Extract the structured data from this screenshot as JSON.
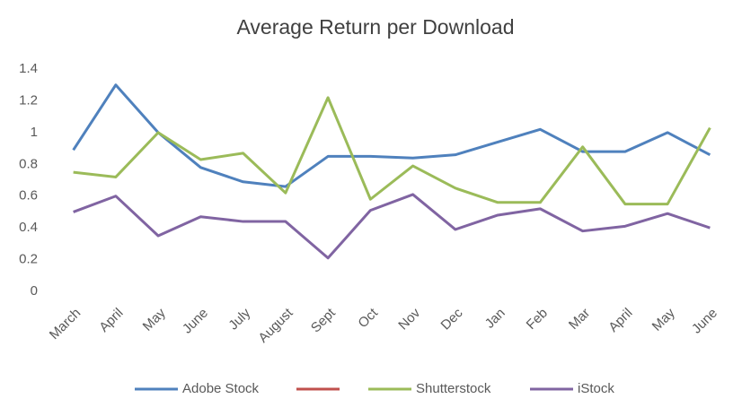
{
  "chart_data": {
    "type": "line",
    "title": "Average Return per Download",
    "categories": [
      "March",
      "April",
      "May",
      "June",
      "July",
      "August",
      "Sept",
      "Oct",
      "Nov",
      "Dec",
      "Jan",
      "Feb",
      "Mar",
      "April",
      "May",
      "June"
    ],
    "series": [
      {
        "name": "Adobe Stock",
        "color": "#4f81bd",
        "values": [
          0.89,
          1.3,
          1.0,
          0.78,
          0.69,
          0.66,
          0.85,
          0.85,
          0.84,
          0.86,
          0.94,
          1.02,
          0.88,
          0.88,
          1.0,
          0.86
        ]
      },
      {
        "color": "#c0504d",
        "values": [
          null,
          null,
          null,
          null,
          null,
          null,
          null,
          null,
          null,
          null,
          null,
          null,
          null,
          null,
          null,
          null
        ]
      },
      {
        "name": "Shutterstock",
        "color": "#9bbb59",
        "values": [
          0.75,
          0.72,
          1.0,
          0.83,
          0.87,
          0.62,
          1.22,
          0.58,
          0.79,
          0.65,
          0.56,
          0.56,
          0.91,
          0.55,
          0.55,
          1.03
        ]
      },
      {
        "name": "iStock",
        "color": "#8064a2",
        "values": [
          0.5,
          0.6,
          0.35,
          0.47,
          0.44,
          0.44,
          0.21,
          0.51,
          0.61,
          0.39,
          0.48,
          0.52,
          0.38,
          0.41,
          0.49,
          0.4
        ]
      }
    ],
    "ylim": [
      0,
      1.4
    ],
    "yticks": [
      0,
      0.2,
      0.4,
      0.6,
      0.8,
      1,
      1.2,
      1.4
    ],
    "grid": false,
    "legend": "bottom"
  }
}
